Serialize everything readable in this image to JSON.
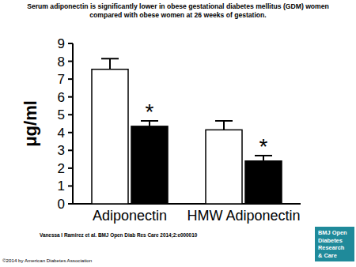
{
  "chart_data": {
    "type": "bar",
    "title": [
      "Serum adiponectin is significantly lower in obese gestational diabetes mellitus (GDM) women",
      "compared with obese women at 26 weeks of gestation."
    ],
    "y_label": "μg/ml",
    "categories": [
      "Adiponectin",
      "HMW Adiponectin"
    ],
    "series": [
      {
        "color": "#ffffff",
        "values": [
          7.55,
          4.15
        ],
        "errors": [
          0.6,
          0.5
        ]
      },
      {
        "color": "#000000",
        "values": [
          4.35,
          2.4
        ],
        "errors": [
          0.3,
          0.3
        ],
        "annotations": [
          "*",
          "*"
        ]
      }
    ],
    "ylim": [
      0,
      9
    ],
    "yticks": [
      0,
      1,
      2,
      3,
      4,
      5,
      6,
      7,
      8,
      9
    ],
    "grid": false,
    "source": "Vanessa I Ramirez et al. BMJ Open Diab Res Care 2014;2:e000010",
    "copyright": "©2014 by American Diabetes Association",
    "logo": [
      "BMJ Open",
      "Diabetes",
      "Research",
      "& Care"
    ]
  }
}
